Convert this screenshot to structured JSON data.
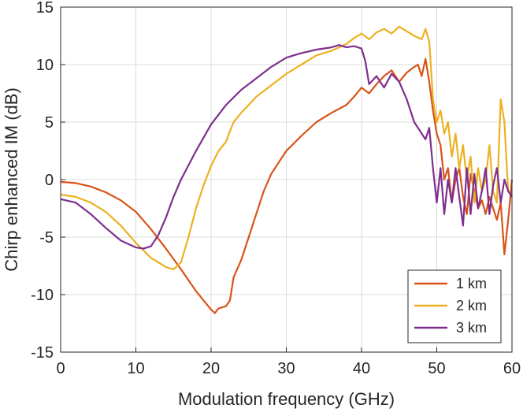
{
  "chart_data": {
    "type": "line",
    "title": "",
    "xlabel": "Modulation frequency (GHz)",
    "ylabel": "Chirp enhanced IM (dB)",
    "xlim": [
      0,
      60
    ],
    "ylim": [
      -15,
      15
    ],
    "xticks": [
      "0",
      "10",
      "20",
      "30",
      "40",
      "50",
      "60"
    ],
    "yticks": [
      "-15",
      "-10",
      "-5",
      "0",
      "5",
      "10",
      "15"
    ],
    "grid": true,
    "legend_position": "bottom-right",
    "series": [
      {
        "name": "1 km",
        "color": "#d95319",
        "x": [
          0,
          2,
          4,
          6,
          8,
          10,
          12,
          14,
          16,
          18,
          19,
          20,
          20.5,
          21,
          22,
          22.5,
          23,
          24,
          25,
          26,
          27,
          28,
          30,
          32,
          34,
          36,
          38,
          39,
          40,
          41,
          42,
          43,
          44,
          45,
          46,
          47,
          47.5,
          48,
          48.5,
          49,
          49.5,
          50,
          50.5,
          51,
          51.5,
          52,
          52.5,
          53,
          53.5,
          54,
          54.5,
          55,
          55.5,
          56,
          56.5,
          57,
          57.5,
          58,
          58.5,
          59,
          59.5,
          60
        ],
        "values": [
          -0.2,
          -0.3,
          -0.6,
          -1.1,
          -1.8,
          -2.8,
          -4.3,
          -6,
          -7.8,
          -9.7,
          -10.5,
          -11.3,
          -11.6,
          -11.2,
          -11.0,
          -10.5,
          -8.5,
          -7,
          -5,
          -3,
          -1,
          0.5,
          2.5,
          3.8,
          5,
          5.8,
          6.5,
          7.2,
          8,
          7.5,
          8.3,
          9,
          9.5,
          8.5,
          9.3,
          9.8,
          10,
          9,
          10.5,
          8.5,
          6,
          4,
          3,
          0,
          1,
          -2,
          0,
          1,
          -1.5,
          -3,
          0.5,
          -1,
          -2.5,
          -1.8,
          -3,
          -1.5,
          -2.5,
          -3.5,
          -2,
          -6.5,
          -3.5,
          0
        ]
      },
      {
        "name": "2 km",
        "color": "#edb120",
        "x": [
          0,
          2,
          4,
          6,
          8,
          10,
          12,
          14,
          15,
          16,
          17,
          18,
          19,
          20,
          21,
          22,
          22.5,
          23,
          24,
          25,
          26,
          28,
          30,
          32,
          34,
          36,
          37,
          38,
          39,
          40,
          41,
          42,
          43,
          44,
          45,
          46,
          47,
          48,
          48.5,
          49,
          49.5,
          50,
          50.5,
          51,
          51.5,
          52,
          52.5,
          53,
          53.5,
          54,
          54.5,
          55,
          55.5,
          56,
          56.5,
          57,
          57.5,
          58,
          58.5,
          59,
          59.5,
          60
        ],
        "values": [
          -1.3,
          -1.5,
          -2,
          -2.8,
          -4,
          -5.5,
          -6.8,
          -7.6,
          -7.8,
          -7.2,
          -5,
          -2.5,
          -0.5,
          1.2,
          2.5,
          3.3,
          4.2,
          5,
          5.8,
          6.5,
          7.2,
          8.2,
          9.2,
          10,
          10.8,
          11.2,
          11.5,
          11.8,
          12.3,
          12.7,
          12.2,
          12.8,
          13.1,
          12.7,
          13.3,
          12.9,
          12.5,
          12.2,
          13.1,
          12,
          7,
          5,
          6,
          4,
          5,
          2,
          4,
          1,
          3,
          0,
          2,
          -2,
          1,
          -1,
          0,
          3,
          -1,
          -2,
          7,
          5,
          -1,
          -1.5
        ]
      },
      {
        "name": "3 km",
        "color": "#7e2f8e",
        "x": [
          0,
          2,
          4,
          6,
          8,
          10,
          11,
          12,
          13,
          14,
          15,
          16,
          18,
          20,
          22,
          24,
          26,
          28,
          30,
          32,
          34,
          36,
          37,
          38,
          39,
          40,
          40.5,
          41,
          42,
          43,
          44,
          45,
          46,
          47,
          48,
          48.5,
          49,
          49.5,
          50,
          50.5,
          51,
          51.5,
          52,
          52.5,
          53,
          53.5,
          54,
          54.5,
          55,
          55.5,
          56,
          56.5,
          57,
          57.5,
          58,
          58.5,
          59,
          59.5,
          60
        ],
        "values": [
          -1.7,
          -2,
          -3,
          -4.2,
          -5.3,
          -5.9,
          -6,
          -5.8,
          -4.8,
          -3.3,
          -1.5,
          0,
          2.5,
          4.8,
          6.5,
          7.8,
          8.8,
          9.8,
          10.6,
          11,
          11.3,
          11.5,
          11.7,
          11.5,
          11.6,
          11.4,
          10.3,
          8.3,
          9,
          8,
          9.2,
          8.5,
          7,
          5,
          4,
          3.5,
          4.5,
          1,
          -2,
          1,
          -3,
          0,
          -2,
          1,
          -1.5,
          -4,
          1,
          -3,
          0.5,
          -2.5,
          -1,
          1,
          -3,
          -0.5,
          1,
          -2,
          0,
          -1,
          -1.5
        ]
      }
    ]
  }
}
